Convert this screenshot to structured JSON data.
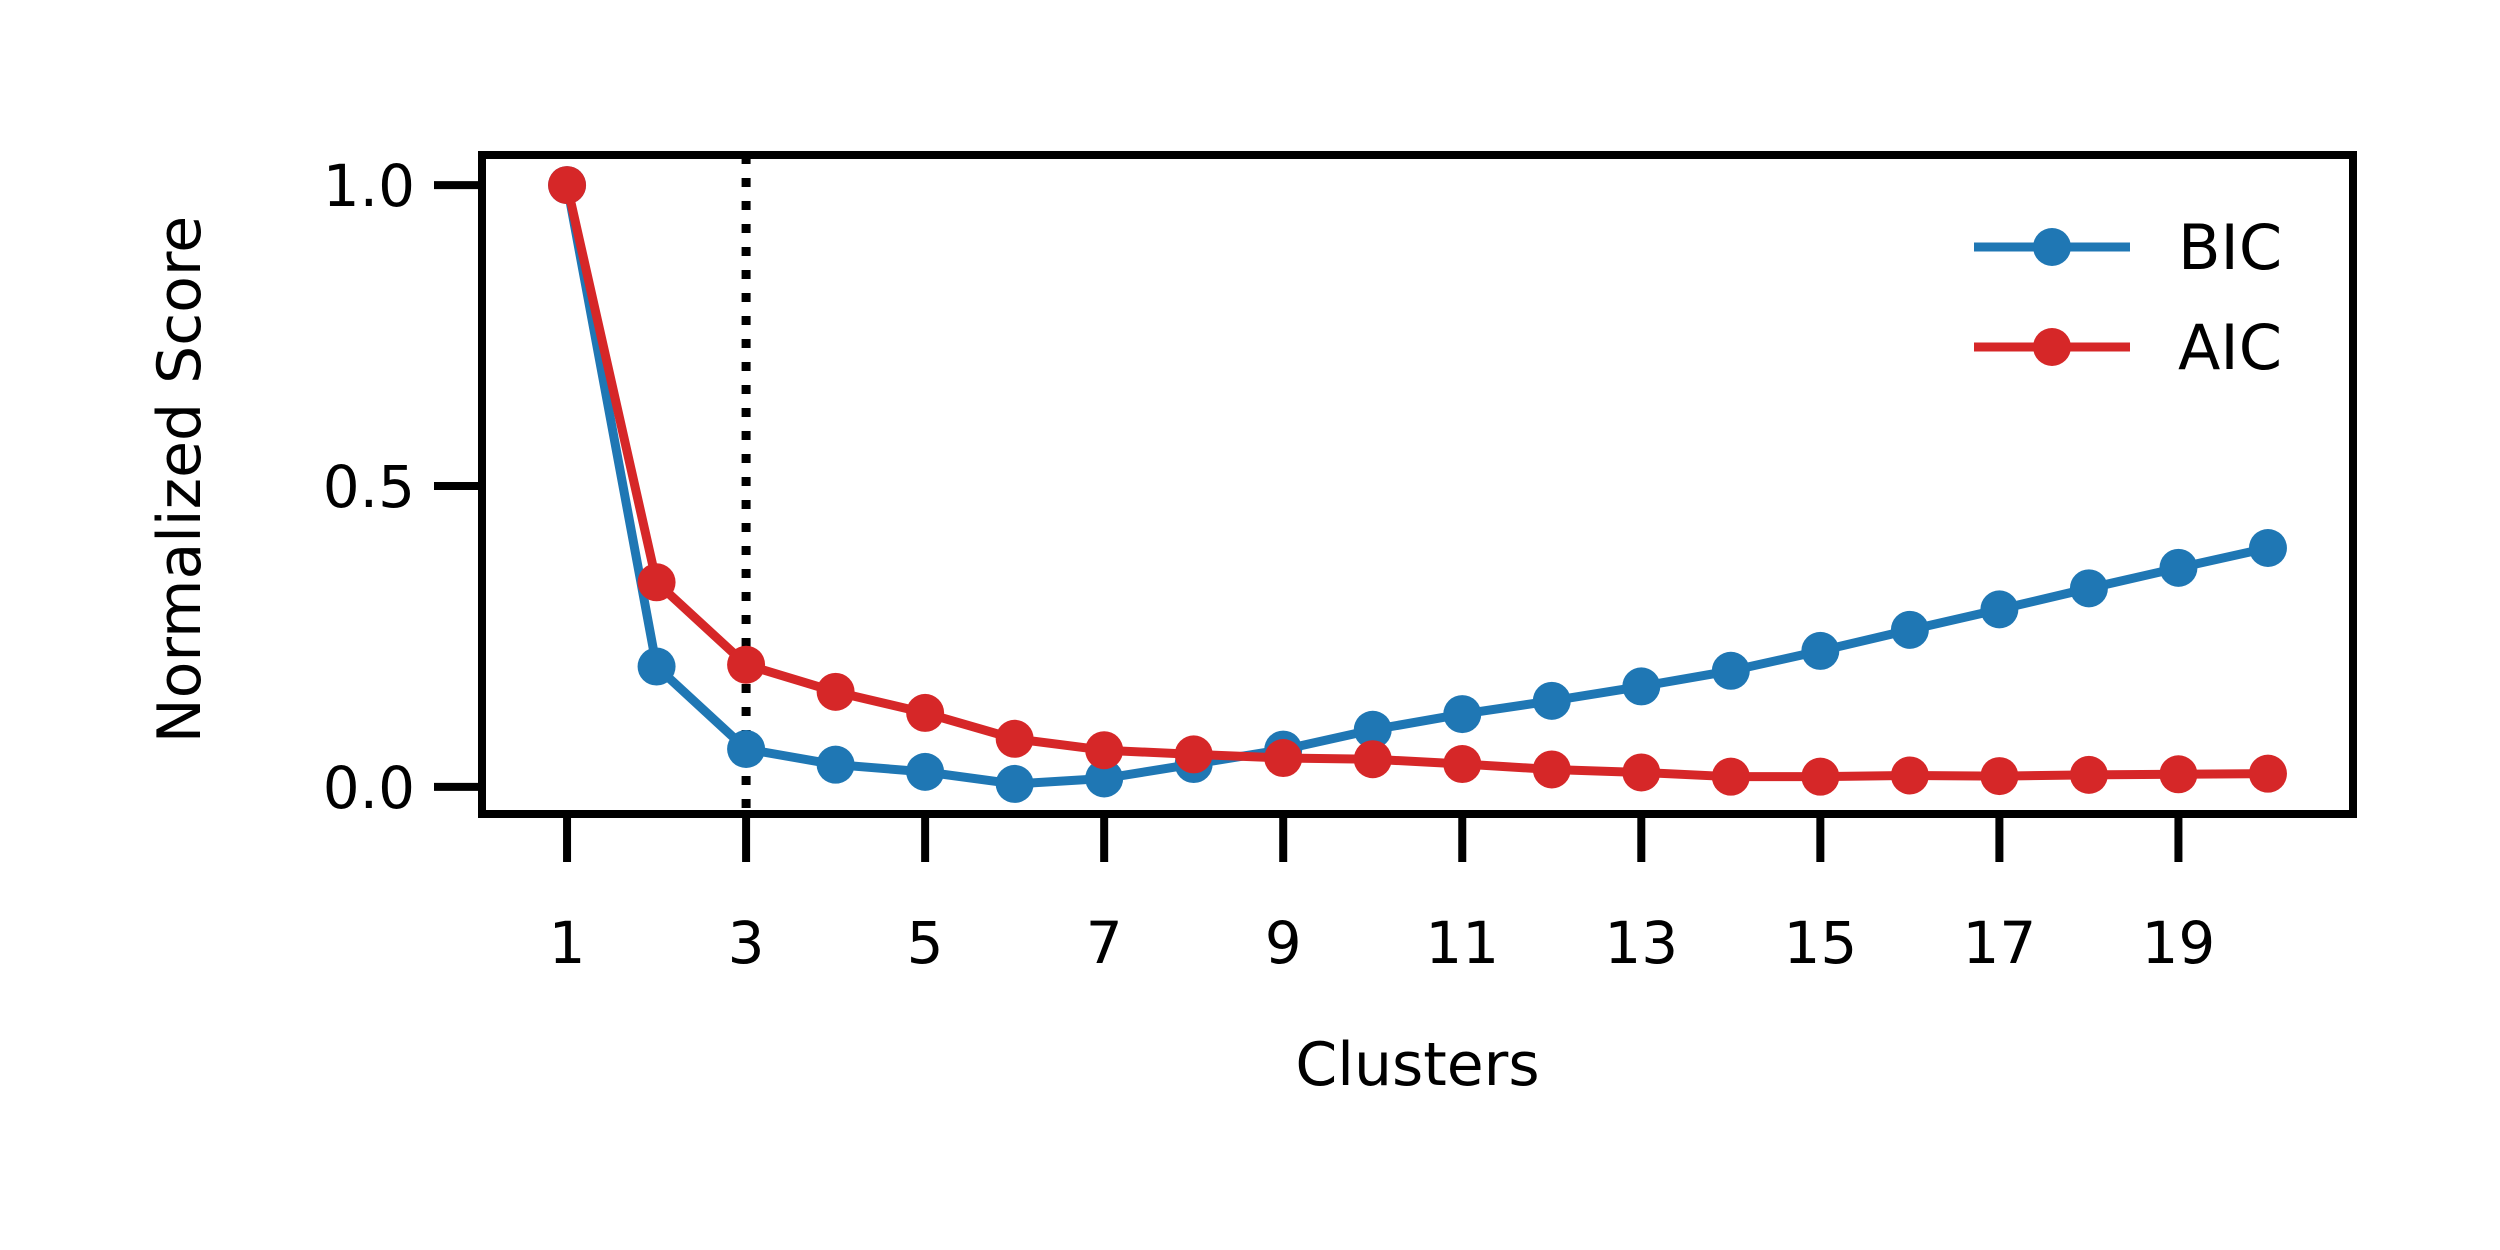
{
  "chart_data": {
    "type": "line",
    "xlabel": "Clusters",
    "ylabel": "Normalized Score",
    "xlim": [
      0.05,
      20.95
    ],
    "ylim": [
      -0.045,
      1.05
    ],
    "x_ticks": [
      1,
      3,
      5,
      7,
      9,
      11,
      13,
      15,
      17,
      19
    ],
    "x_tick_labels": [
      "1",
      "3",
      "5",
      "7",
      "9",
      "11",
      "13",
      "15",
      "17",
      "19"
    ],
    "y_ticks": [
      0.0,
      0.5,
      1.0
    ],
    "y_tick_labels": [
      "0.0",
      "0.5",
      "1.0"
    ],
    "grid": false,
    "legend_position": "top-right",
    "reference_line": {
      "x": 3,
      "style": "dotted",
      "color": "#000000"
    },
    "x": [
      1,
      2,
      3,
      4,
      5,
      6,
      7,
      8,
      9,
      10,
      11,
      12,
      13,
      14,
      15,
      16,
      17,
      18,
      19,
      20
    ],
    "series": [
      {
        "name": "BIC",
        "color": "#1f77b4",
        "values": [
          1.0,
          0.2,
          0.063,
          0.037,
          0.025,
          0.005,
          0.014,
          0.038,
          0.062,
          0.095,
          0.121,
          0.143,
          0.167,
          0.193,
          0.226,
          0.261,
          0.295,
          0.33,
          0.364,
          0.397
        ]
      },
      {
        "name": "AIC",
        "color": "#d62728",
        "values": [
          1.0,
          0.34,
          0.203,
          0.158,
          0.123,
          0.08,
          0.061,
          0.054,
          0.048,
          0.046,
          0.038,
          0.029,
          0.024,
          0.017,
          0.017,
          0.019,
          0.018,
          0.02,
          0.021,
          0.022
        ]
      }
    ]
  }
}
